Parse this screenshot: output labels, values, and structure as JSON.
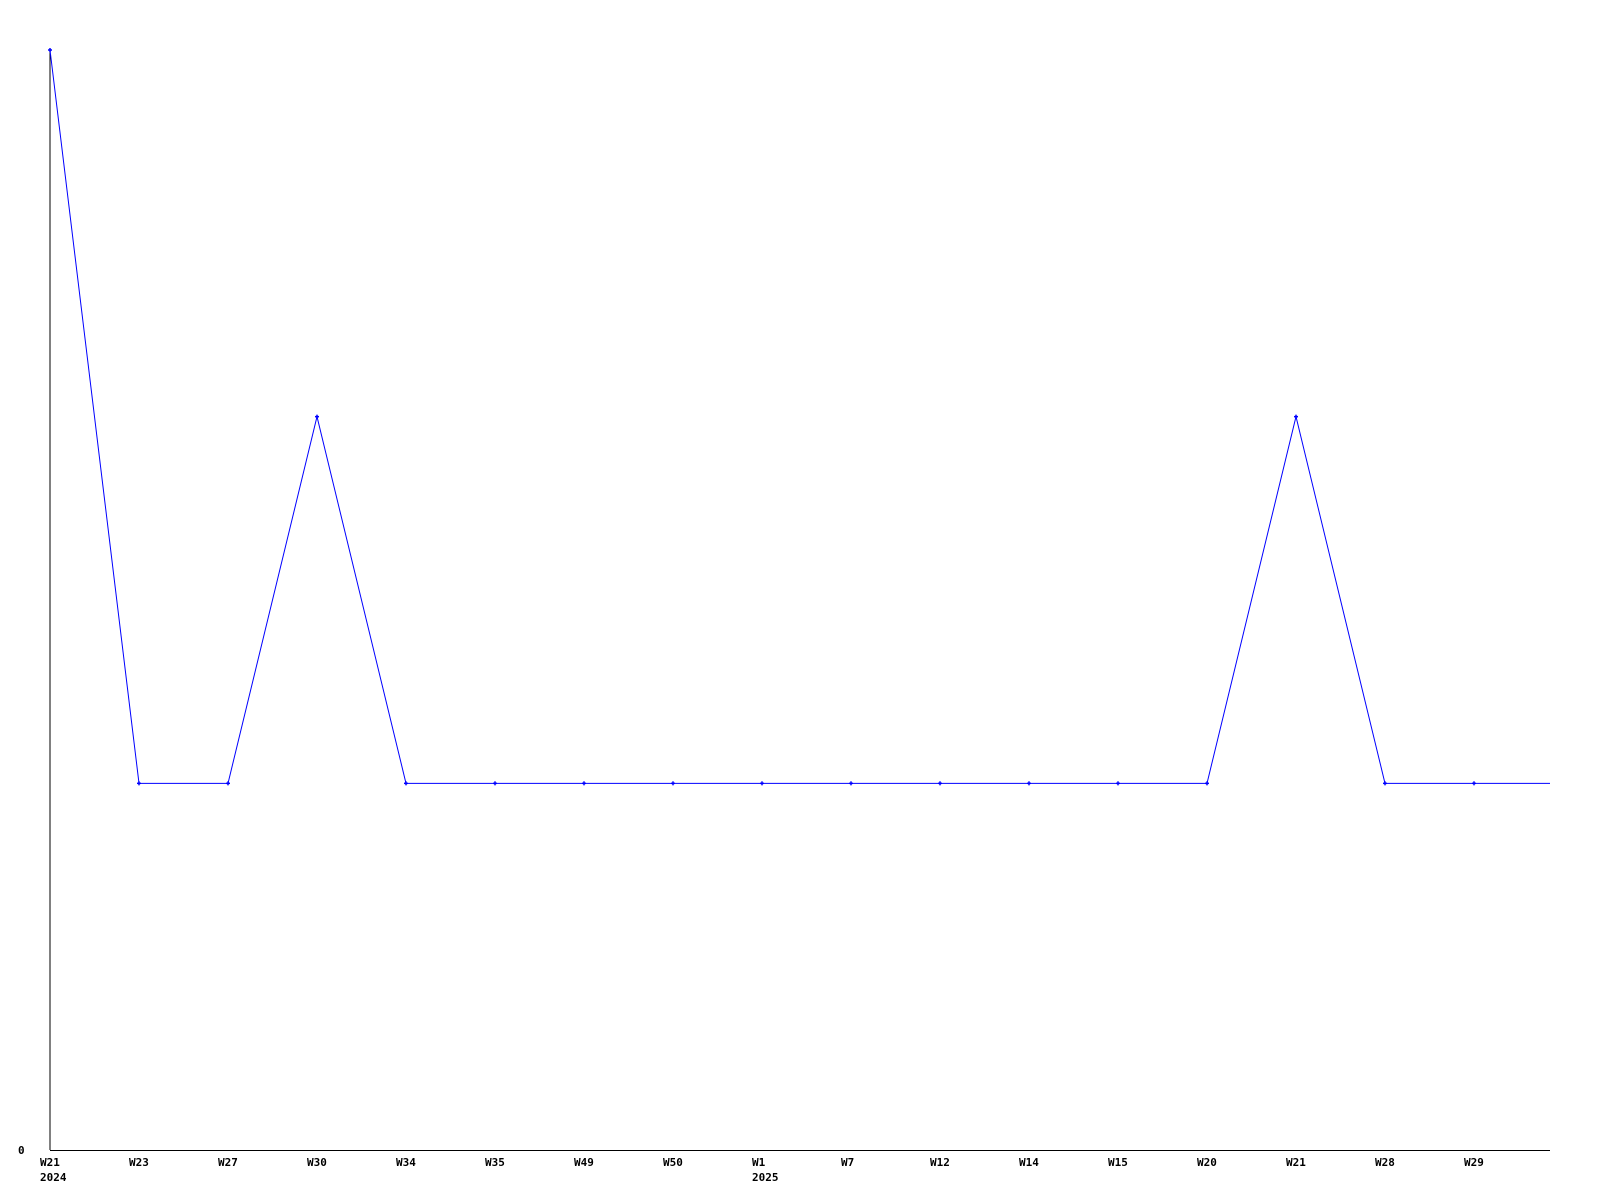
{
  "chart_data": {
    "type": "line",
    "title": "",
    "xlabel": "",
    "ylabel": "",
    "categories": [
      "W21",
      "W23",
      "W27",
      "W30",
      "W34",
      "W35",
      "W49",
      "W50",
      "W1",
      "W7",
      "W12",
      "W14",
      "W15",
      "W20",
      "W21",
      "W28",
      "W29"
    ],
    "year_labels": [
      {
        "index": 0,
        "label": "2024"
      },
      {
        "index": 8,
        "label": "2025"
      }
    ],
    "series": [
      {
        "values": [
          3,
          1,
          1,
          2,
          1,
          1,
          1,
          1,
          1,
          1,
          1,
          1,
          1,
          1,
          2,
          1,
          1
        ],
        "color": "#0000ff"
      }
    ],
    "y_tick_labels": [
      "0"
    ],
    "ylim": [
      0,
      3
    ],
    "grid": false,
    "legend": "none"
  }
}
